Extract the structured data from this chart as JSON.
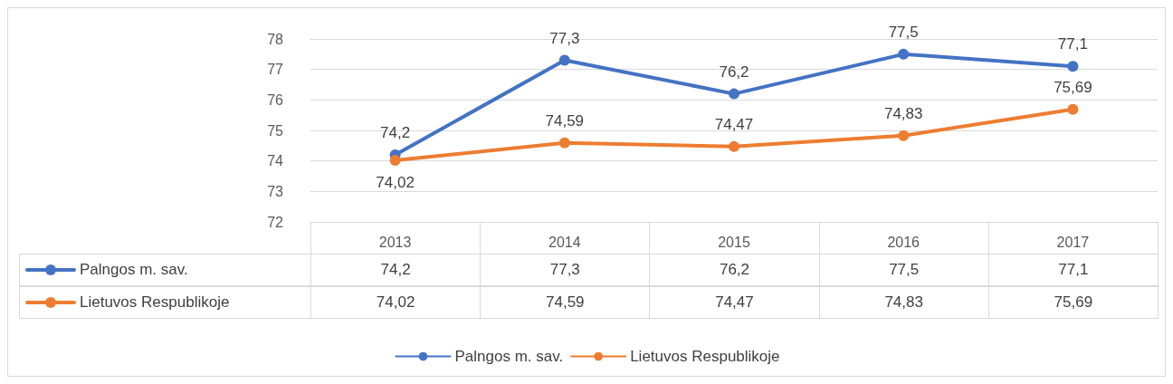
{
  "chart_data": {
    "type": "line",
    "categories": [
      "2013",
      "2014",
      "2015",
      "2016",
      "2017"
    ],
    "series": [
      {
        "name": "Palngos m. sav.",
        "color": "#4472c4",
        "values": [
          74.2,
          77.3,
          76.2,
          77.5,
          77.1
        ],
        "value_labels": [
          "74,2",
          "77,3",
          "76,2",
          "77,5",
          "77,1"
        ]
      },
      {
        "name": "Lietuvos Respublikoje",
        "color": "#ed7d31",
        "values": [
          74.02,
          74.59,
          74.47,
          74.83,
          75.69
        ],
        "value_labels": [
          "74,02",
          "74,59",
          "74,47",
          "74,83",
          "75,69"
        ]
      }
    ],
    "ylim": [
      72,
      78
    ],
    "yticks": [
      72,
      73,
      74,
      75,
      76,
      77,
      78
    ],
    "grid": "y",
    "legend": "bottom",
    "marker": "circle",
    "line_style": "solid"
  }
}
